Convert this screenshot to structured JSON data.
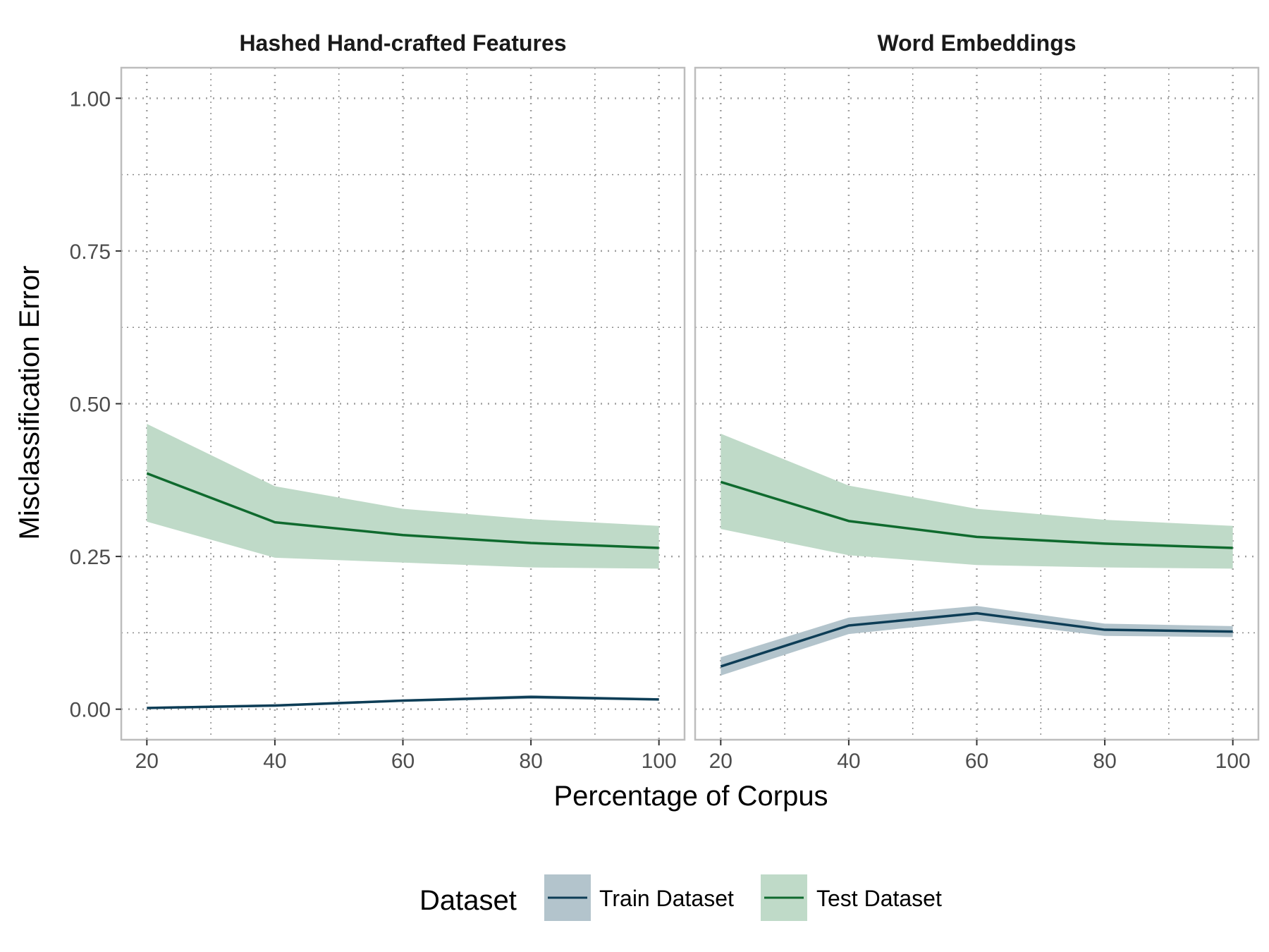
{
  "chart_data": {
    "type": "line",
    "ylabel": "Misclassification Error",
    "xlabel": "Percentage of Corpus",
    "x_ticks": [
      20,
      40,
      60,
      80,
      100
    ],
    "y_ticks": [
      "0.00",
      "0.25",
      "0.50",
      "0.75",
      "1.00"
    ],
    "xlim": [
      16,
      104
    ],
    "ylim": [
      -0.05,
      1.05
    ],
    "grid": true,
    "legend": {
      "title": "Dataset",
      "position": "bottom",
      "entries": [
        {
          "label": "Train Dataset",
          "line_color": "#0d3d56",
          "fill_color": "#b3c4cc"
        },
        {
          "label": "Test Dataset",
          "line_color": "#0f6a2e",
          "fill_color": "#bfdac8"
        }
      ]
    },
    "panels": [
      {
        "title": "Hashed Hand-crafted Features",
        "series": [
          {
            "name": "Train Dataset",
            "x": [
              20,
              40,
              60,
              80,
              100
            ],
            "y": [
              0.002,
              0.006,
              0.014,
              0.02,
              0.016
            ],
            "lower": [
              0.0,
              0.004,
              0.012,
              0.017,
              0.014
            ],
            "upper": [
              0.004,
              0.008,
              0.016,
              0.023,
              0.018
            ]
          },
          {
            "name": "Test Dataset",
            "x": [
              20,
              40,
              60,
              80,
              100
            ],
            "y": [
              0.386,
              0.306,
              0.285,
              0.272,
              0.264
            ],
            "lower": [
              0.307,
              0.248,
              0.24,
              0.232,
              0.23
            ],
            "upper": [
              0.467,
              0.365,
              0.328,
              0.311,
              0.3
            ]
          }
        ]
      },
      {
        "title": "Word Embeddings",
        "series": [
          {
            "name": "Train Dataset",
            "x": [
              20,
              40,
              60,
              80,
              100
            ],
            "y": [
              0.07,
              0.137,
              0.157,
              0.13,
              0.127
            ],
            "lower": [
              0.055,
              0.123,
              0.145,
              0.12,
              0.118
            ],
            "upper": [
              0.085,
              0.15,
              0.169,
              0.14,
              0.136
            ]
          },
          {
            "name": "Test Dataset",
            "x": [
              20,
              40,
              60,
              80,
              100
            ],
            "y": [
              0.372,
              0.308,
              0.282,
              0.271,
              0.264
            ],
            "lower": [
              0.295,
              0.252,
              0.236,
              0.232,
              0.23
            ],
            "upper": [
              0.451,
              0.366,
              0.328,
              0.31,
              0.3
            ]
          }
        ]
      }
    ]
  }
}
